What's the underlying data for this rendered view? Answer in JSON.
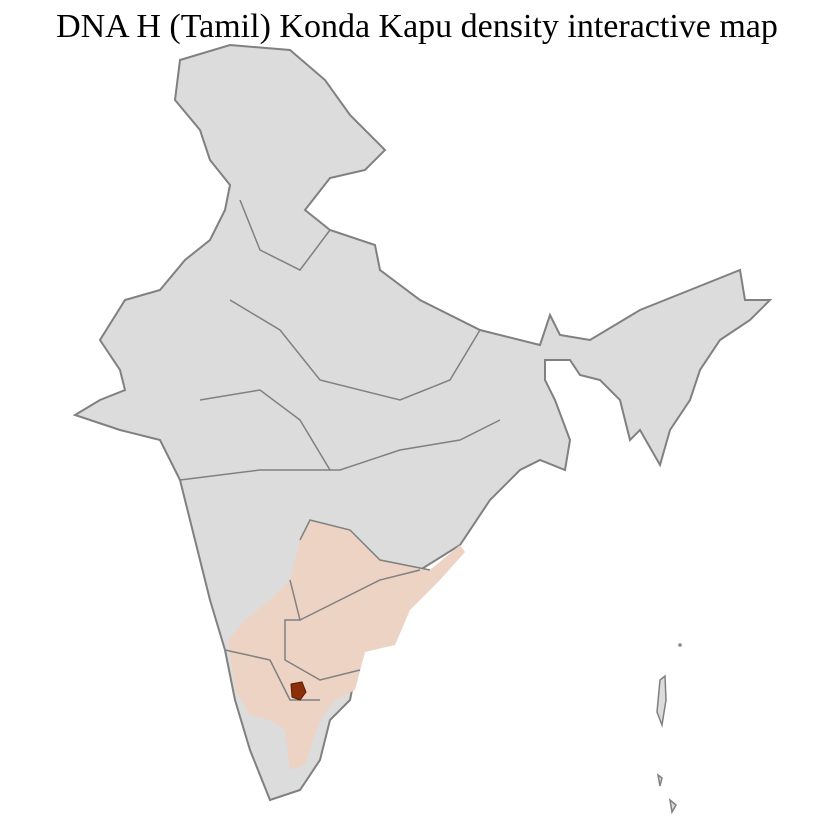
{
  "title": "DNA H (Tamil) Konda Kapu density interactive map",
  "colors": {
    "base_region": "#dcdcdc",
    "low_density": "#ecd3c4",
    "high_density": "#8b2e0a",
    "district_border": "#ffffff",
    "state_border": "#808080"
  }
}
